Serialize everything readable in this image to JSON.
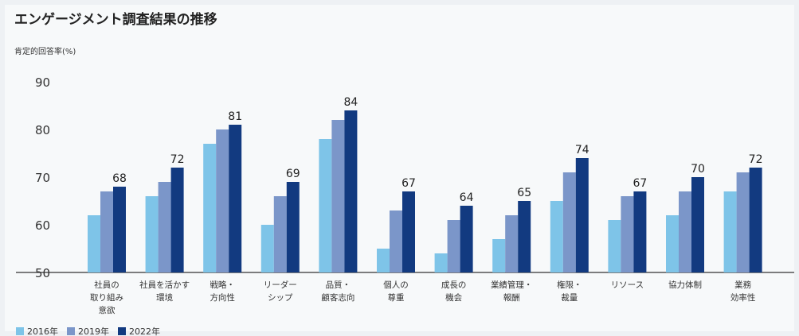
{
  "chart_data": {
    "type": "bar",
    "title": "エンゲージメント調査結果の推移",
    "ylabel": "肯定的回答率(%)",
    "xlabel": "",
    "ylim": [
      50,
      92
    ],
    "yticks": [
      50,
      60,
      70,
      80,
      90
    ],
    "grid": false,
    "legend_position": "bottom-left",
    "categories": [
      [
        "社員の",
        "取り組み",
        "意欲"
      ],
      [
        "社員を活かす",
        "環境"
      ],
      [
        "戦略・",
        "方向性"
      ],
      [
        "リーダー",
        "シップ"
      ],
      [
        "品質・",
        "顧客志向"
      ],
      [
        "個人の",
        "尊重"
      ],
      [
        "成長の",
        "機会"
      ],
      [
        "業績管理・",
        "報酬"
      ],
      [
        "権限・",
        "裁量"
      ],
      [
        "リソース"
      ],
      [
        "協力体制"
      ],
      [
        "業務",
        "効率性"
      ]
    ],
    "series": [
      {
        "name": "2016年",
        "color": "#7ec4e8",
        "values": [
          62,
          66,
          77,
          60,
          78,
          55,
          54,
          57,
          65,
          61,
          62,
          67
        ]
      },
      {
        "name": "2019年",
        "color": "#7b96c9",
        "values": [
          67,
          69,
          80,
          66,
          82,
          63,
          61,
          62,
          71,
          66,
          67,
          71
        ]
      },
      {
        "name": "2022年",
        "color": "#123a80",
        "values": [
          68,
          72,
          81,
          69,
          84,
          67,
          64,
          65,
          74,
          67,
          70,
          72
        ]
      }
    ],
    "data_labels": [
      68,
      72,
      81,
      69,
      84,
      67,
      64,
      65,
      74,
      67,
      70,
      72
    ]
  }
}
